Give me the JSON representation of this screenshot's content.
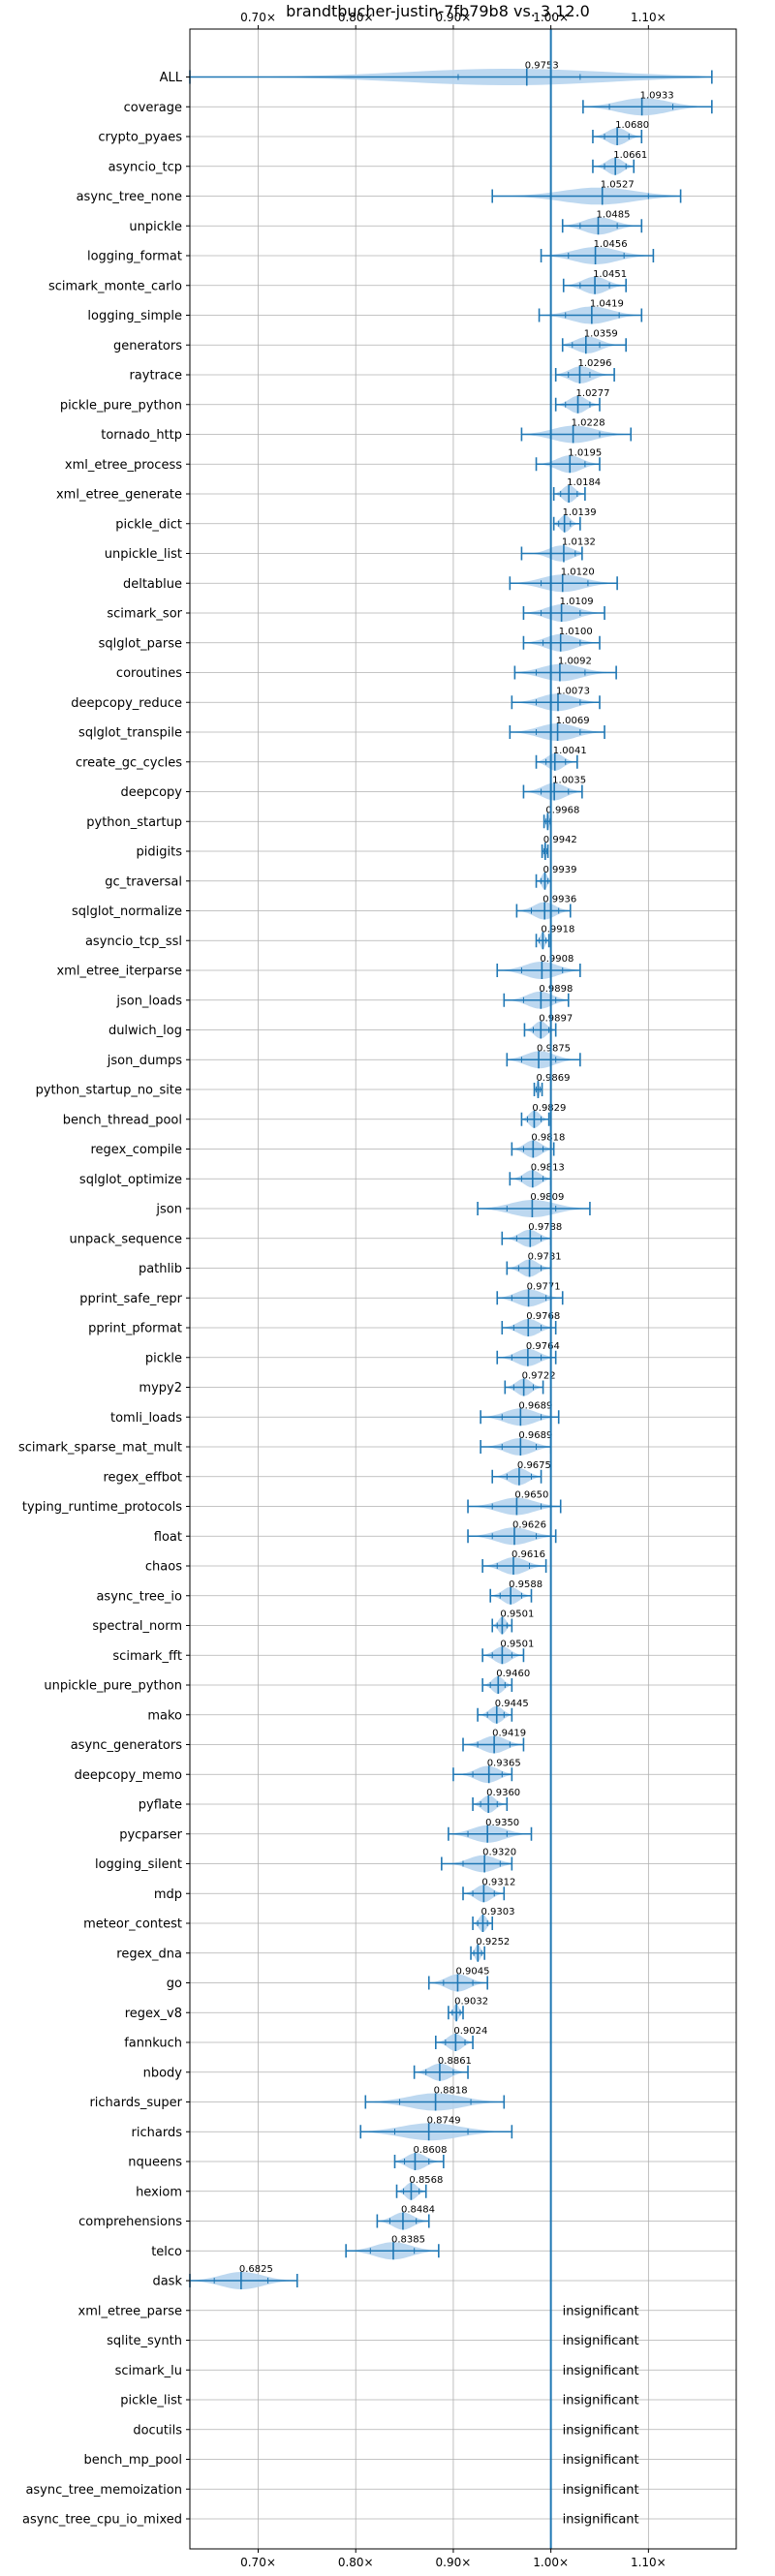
{
  "chart_data": {
    "type": "violin",
    "title": "brandtbucher-justin-7fb79b8 vs. 3.12.0",
    "xlabel": "",
    "ylabel": "",
    "xlim": [
      0.63,
      1.19
    ],
    "x_tick_labels": [
      "0.70×",
      "0.80×",
      "0.90×",
      "1.00×",
      "1.10×"
    ],
    "x_ticks": [
      0.7,
      0.8,
      0.9,
      1.0,
      1.1
    ],
    "grid": true,
    "reference_line": 1.0,
    "colors": {
      "violin": "#b6d4ee",
      "line": "#1f77b4",
      "grid": "#b0b0b0"
    },
    "insignificant_label": "insignificant",
    "benchmarks": [
      {
        "name": "ALL",
        "mean": 0.9753,
        "min": 0.63,
        "max": 1.165,
        "q1": 0.905,
        "q3": 1.03,
        "label": "0.9753"
      },
      {
        "name": "coverage",
        "mean": 1.0933,
        "min": 1.033,
        "max": 1.165,
        "q1": 1.06,
        "q3": 1.125,
        "label": "1.0933"
      },
      {
        "name": "crypto_pyaes",
        "mean": 1.068,
        "min": 1.043,
        "max": 1.093,
        "q1": 1.055,
        "q3": 1.08,
        "label": "1.0680"
      },
      {
        "name": "asyncio_tcp",
        "mean": 1.0661,
        "min": 1.043,
        "max": 1.085,
        "q1": 1.055,
        "q3": 1.077,
        "label": "1.0661"
      },
      {
        "name": "async_tree_none",
        "mean": 1.0527,
        "min": 0.94,
        "max": 1.133,
        "q1": 1.0,
        "q3": 1.1,
        "label": "1.0527"
      },
      {
        "name": "unpickle",
        "mean": 1.0485,
        "min": 1.012,
        "max": 1.093,
        "q1": 1.03,
        "q3": 1.068,
        "label": "1.0485"
      },
      {
        "name": "logging_format",
        "mean": 1.0456,
        "min": 0.99,
        "max": 1.105,
        "q1": 1.018,
        "q3": 1.075,
        "label": "1.0456"
      },
      {
        "name": "scimark_monte_carlo",
        "mean": 1.0451,
        "min": 1.013,
        "max": 1.077,
        "q1": 1.03,
        "q3": 1.06,
        "label": "1.0451"
      },
      {
        "name": "logging_simple",
        "mean": 1.0419,
        "min": 0.988,
        "max": 1.093,
        "q1": 1.015,
        "q3": 1.07,
        "label": "1.0419"
      },
      {
        "name": "generators",
        "mean": 1.0359,
        "min": 1.012,
        "max": 1.077,
        "q1": 1.022,
        "q3": 1.05,
        "label": "1.0359"
      },
      {
        "name": "raytrace",
        "mean": 1.0296,
        "min": 1.005,
        "max": 1.065,
        "q1": 1.018,
        "q3": 1.04,
        "label": "1.0296"
      },
      {
        "name": "pickle_pure_python",
        "mean": 1.0277,
        "min": 1.005,
        "max": 1.05,
        "q1": 1.015,
        "q3": 1.04,
        "label": "1.0277"
      },
      {
        "name": "tornado_http",
        "mean": 1.0228,
        "min": 0.97,
        "max": 1.082,
        "q1": 1.0,
        "q3": 1.05,
        "label": "1.0228"
      },
      {
        "name": "xml_etree_process",
        "mean": 1.0195,
        "min": 0.985,
        "max": 1.05,
        "q1": 1.0,
        "q3": 1.035,
        "label": "1.0195"
      },
      {
        "name": "xml_etree_generate",
        "mean": 1.0184,
        "min": 1.003,
        "max": 1.035,
        "q1": 1.01,
        "q3": 1.027,
        "label": "1.0184"
      },
      {
        "name": "pickle_dict",
        "mean": 1.0139,
        "min": 1.003,
        "max": 1.03,
        "q1": 1.008,
        "q3": 1.02,
        "label": "1.0139"
      },
      {
        "name": "unpickle_list",
        "mean": 1.0132,
        "min": 0.97,
        "max": 1.032,
        "q1": 1.0,
        "q3": 1.025,
        "label": "1.0132"
      },
      {
        "name": "deltablue",
        "mean": 1.012,
        "min": 0.958,
        "max": 1.068,
        "q1": 0.99,
        "q3": 1.038,
        "label": "1.0120"
      },
      {
        "name": "scimark_sor",
        "mean": 1.0109,
        "min": 0.972,
        "max": 1.055,
        "q1": 0.99,
        "q3": 1.03,
        "label": "1.0109"
      },
      {
        "name": "sqlglot_parse",
        "mean": 1.01,
        "min": 0.972,
        "max": 1.05,
        "q1": 0.992,
        "q3": 1.03,
        "label": "1.0100"
      },
      {
        "name": "coroutines",
        "mean": 1.0092,
        "min": 0.963,
        "max": 1.067,
        "q1": 0.985,
        "q3": 1.035,
        "label": "1.0092"
      },
      {
        "name": "deepcopy_reduce",
        "mean": 1.0073,
        "min": 0.96,
        "max": 1.05,
        "q1": 0.985,
        "q3": 1.03,
        "label": "1.0073"
      },
      {
        "name": "sqlglot_transpile",
        "mean": 1.0069,
        "min": 0.958,
        "max": 1.055,
        "q1": 0.985,
        "q3": 1.03,
        "label": "1.0069"
      },
      {
        "name": "create_gc_cycles",
        "mean": 1.0041,
        "min": 0.985,
        "max": 1.027,
        "q1": 0.995,
        "q3": 1.015,
        "label": "1.0041"
      },
      {
        "name": "deepcopy",
        "mean": 1.0035,
        "min": 0.972,
        "max": 1.032,
        "q1": 0.99,
        "q3": 1.018,
        "label": "1.0035"
      },
      {
        "name": "python_startup",
        "mean": 0.9968,
        "min": 0.993,
        "max": 1.0,
        "q1": 0.995,
        "q3": 0.999,
        "label": "0.9968"
      },
      {
        "name": "pidigits",
        "mean": 0.9942,
        "min": 0.991,
        "max": 0.997,
        "q1": 0.993,
        "q3": 0.996,
        "label": "0.9942"
      },
      {
        "name": "gc_traversal",
        "mean": 0.9939,
        "min": 0.985,
        "max": 1.0,
        "q1": 0.99,
        "q3": 0.997,
        "label": "0.9939"
      },
      {
        "name": "sqlglot_normalize",
        "mean": 0.9936,
        "min": 0.965,
        "max": 1.02,
        "q1": 0.98,
        "q3": 1.008,
        "label": "0.9936"
      },
      {
        "name": "asyncio_tcp_ssl",
        "mean": 0.9918,
        "min": 0.985,
        "max": 0.998,
        "q1": 0.988,
        "q3": 0.995,
        "label": "0.9918"
      },
      {
        "name": "xml_etree_iterparse",
        "mean": 0.9908,
        "min": 0.945,
        "max": 1.03,
        "q1": 0.97,
        "q3": 1.012,
        "label": "0.9908"
      },
      {
        "name": "json_loads",
        "mean": 0.9898,
        "min": 0.952,
        "max": 1.018,
        "q1": 0.972,
        "q3": 1.005,
        "label": "0.9898"
      },
      {
        "name": "dulwich_log",
        "mean": 0.9897,
        "min": 0.973,
        "max": 1.005,
        "q1": 0.982,
        "q3": 0.998,
        "label": "0.9897"
      },
      {
        "name": "json_dumps",
        "mean": 0.9875,
        "min": 0.955,
        "max": 1.03,
        "q1": 0.97,
        "q3": 1.005,
        "label": "0.9875"
      },
      {
        "name": "python_startup_no_site",
        "mean": 0.9869,
        "min": 0.983,
        "max": 0.991,
        "q1": 0.985,
        "q3": 0.989,
        "label": "0.9869"
      },
      {
        "name": "bench_thread_pool",
        "mean": 0.9829,
        "min": 0.97,
        "max": 0.998,
        "q1": 0.976,
        "q3": 0.99,
        "label": "0.9829"
      },
      {
        "name": "regex_compile",
        "mean": 0.9818,
        "min": 0.96,
        "max": 1.003,
        "q1": 0.972,
        "q3": 0.992,
        "label": "0.9818"
      },
      {
        "name": "sqlglot_optimize",
        "mean": 0.9813,
        "min": 0.958,
        "max": 1.0,
        "q1": 0.97,
        "q3": 0.992,
        "label": "0.9813"
      },
      {
        "name": "json",
        "mean": 0.9809,
        "min": 0.925,
        "max": 1.04,
        "q1": 0.955,
        "q3": 1.005,
        "label": "0.9809"
      },
      {
        "name": "unpack_sequence",
        "mean": 0.9788,
        "min": 0.95,
        "max": 1.0,
        "q1": 0.965,
        "q3": 0.99,
        "label": "0.9788"
      },
      {
        "name": "pathlib",
        "mean": 0.9781,
        "min": 0.955,
        "max": 1.0,
        "q1": 0.967,
        "q3": 0.99,
        "label": "0.9781"
      },
      {
        "name": "pprint_safe_repr",
        "mean": 0.9771,
        "min": 0.945,
        "max": 1.012,
        "q1": 0.96,
        "q3": 0.995,
        "label": "0.9771"
      },
      {
        "name": "pprint_pformat",
        "mean": 0.9768,
        "min": 0.95,
        "max": 1.005,
        "q1": 0.962,
        "q3": 0.99,
        "label": "0.9768"
      },
      {
        "name": "pickle",
        "mean": 0.9764,
        "min": 0.945,
        "max": 1.005,
        "q1": 0.96,
        "q3": 0.99,
        "label": "0.9764"
      },
      {
        "name": "mypy2",
        "mean": 0.9722,
        "min": 0.953,
        "max": 0.992,
        "q1": 0.962,
        "q3": 0.982,
        "label": "0.9722"
      },
      {
        "name": "tomli_loads",
        "mean": 0.9689,
        "min": 0.928,
        "max": 1.008,
        "q1": 0.95,
        "q3": 0.99,
        "label": "0.9689"
      },
      {
        "name": "scimark_sparse_mat_mult",
        "mean": 0.9689,
        "min": 0.928,
        "max": 1.0,
        "q1": 0.95,
        "q3": 0.985,
        "label": "0.9689"
      },
      {
        "name": "regex_effbot",
        "mean": 0.9675,
        "min": 0.94,
        "max": 0.99,
        "q1": 0.955,
        "q3": 0.98,
        "label": "0.9675"
      },
      {
        "name": "typing_runtime_protocols",
        "mean": 0.965,
        "min": 0.915,
        "max": 1.01,
        "q1": 0.94,
        "q3": 0.99,
        "label": "0.9650"
      },
      {
        "name": "float",
        "mean": 0.9626,
        "min": 0.915,
        "max": 1.005,
        "q1": 0.94,
        "q3": 0.985,
        "label": "0.9626"
      },
      {
        "name": "chaos",
        "mean": 0.9616,
        "min": 0.93,
        "max": 0.995,
        "q1": 0.945,
        "q3": 0.978,
        "label": "0.9616"
      },
      {
        "name": "async_tree_io",
        "mean": 0.9588,
        "min": 0.938,
        "max": 0.98,
        "q1": 0.948,
        "q3": 0.97,
        "label": "0.9588"
      },
      {
        "name": "spectral_norm",
        "mean": 0.9501,
        "min": 0.94,
        "max": 0.96,
        "q1": 0.945,
        "q3": 0.955,
        "label": "0.9501"
      },
      {
        "name": "scimark_fft",
        "mean": 0.9501,
        "min": 0.93,
        "max": 0.972,
        "q1": 0.94,
        "q3": 0.96,
        "label": "0.9501"
      },
      {
        "name": "unpickle_pure_python",
        "mean": 0.946,
        "min": 0.93,
        "max": 0.96,
        "q1": 0.938,
        "q3": 0.953,
        "label": "0.9460"
      },
      {
        "name": "mako",
        "mean": 0.9445,
        "min": 0.925,
        "max": 0.96,
        "q1": 0.935,
        "q3": 0.952,
        "label": "0.9445"
      },
      {
        "name": "async_generators",
        "mean": 0.9419,
        "min": 0.91,
        "max": 0.972,
        "q1": 0.925,
        "q3": 0.958,
        "label": "0.9419"
      },
      {
        "name": "deepcopy_memo",
        "mean": 0.9365,
        "min": 0.9,
        "max": 0.96,
        "q1": 0.92,
        "q3": 0.95,
        "label": "0.9365"
      },
      {
        "name": "pyflate",
        "mean": 0.936,
        "min": 0.92,
        "max": 0.955,
        "q1": 0.928,
        "q3": 0.945,
        "label": "0.9360"
      },
      {
        "name": "pycparser",
        "mean": 0.935,
        "min": 0.895,
        "max": 0.98,
        "q1": 0.915,
        "q3": 0.955,
        "label": "0.9350"
      },
      {
        "name": "logging_silent",
        "mean": 0.932,
        "min": 0.888,
        "max": 0.96,
        "q1": 0.91,
        "q3": 0.948,
        "label": "0.9320"
      },
      {
        "name": "mdp",
        "mean": 0.9312,
        "min": 0.91,
        "max": 0.952,
        "q1": 0.92,
        "q3": 0.942,
        "label": "0.9312"
      },
      {
        "name": "meteor_contest",
        "mean": 0.9303,
        "min": 0.92,
        "max": 0.94,
        "q1": 0.925,
        "q3": 0.935,
        "label": "0.9303"
      },
      {
        "name": "regex_dna",
        "mean": 0.9252,
        "min": 0.918,
        "max": 0.932,
        "q1": 0.921,
        "q3": 0.929,
        "label": "0.9252"
      },
      {
        "name": "go",
        "mean": 0.9045,
        "min": 0.875,
        "max": 0.935,
        "q1": 0.89,
        "q3": 0.92,
        "label": "0.9045"
      },
      {
        "name": "regex_v8",
        "mean": 0.9032,
        "min": 0.895,
        "max": 0.91,
        "q1": 0.899,
        "q3": 0.907,
        "label": "0.9032"
      },
      {
        "name": "fannkuch",
        "mean": 0.9024,
        "min": 0.882,
        "max": 0.92,
        "q1": 0.892,
        "q3": 0.912,
        "label": "0.9024"
      },
      {
        "name": "nbody",
        "mean": 0.8861,
        "min": 0.86,
        "max": 0.915,
        "q1": 0.872,
        "q3": 0.9,
        "label": "0.8861"
      },
      {
        "name": "richards_super",
        "mean": 0.8818,
        "min": 0.81,
        "max": 0.952,
        "q1": 0.845,
        "q3": 0.918,
        "label": "0.8818"
      },
      {
        "name": "richards",
        "mean": 0.8749,
        "min": 0.805,
        "max": 0.96,
        "q1": 0.84,
        "q3": 0.915,
        "label": "0.8749"
      },
      {
        "name": "nqueens",
        "mean": 0.8608,
        "min": 0.84,
        "max": 0.89,
        "q1": 0.85,
        "q3": 0.875,
        "label": "0.8608"
      },
      {
        "name": "hexiom",
        "mean": 0.8568,
        "min": 0.842,
        "max": 0.872,
        "q1": 0.849,
        "q3": 0.865,
        "label": "0.8568"
      },
      {
        "name": "comprehensions",
        "mean": 0.8484,
        "min": 0.822,
        "max": 0.875,
        "q1": 0.835,
        "q3": 0.862,
        "label": "0.8484"
      },
      {
        "name": "telco",
        "mean": 0.8385,
        "min": 0.79,
        "max": 0.885,
        "q1": 0.815,
        "q3": 0.86,
        "label": "0.8385"
      },
      {
        "name": "dask",
        "mean": 0.6825,
        "min": 0.63,
        "max": 0.74,
        "q1": 0.655,
        "q3": 0.71,
        "label": "0.6825"
      },
      {
        "name": "xml_etree_parse",
        "insignificant": true
      },
      {
        "name": "sqlite_synth",
        "insignificant": true
      },
      {
        "name": "scimark_lu",
        "insignificant": true
      },
      {
        "name": "pickle_list",
        "insignificant": true
      },
      {
        "name": "docutils",
        "insignificant": true
      },
      {
        "name": "bench_mp_pool",
        "insignificant": true
      },
      {
        "name": "async_tree_memoization",
        "insignificant": true
      },
      {
        "name": "async_tree_cpu_io_mixed",
        "insignificant": true
      }
    ]
  }
}
